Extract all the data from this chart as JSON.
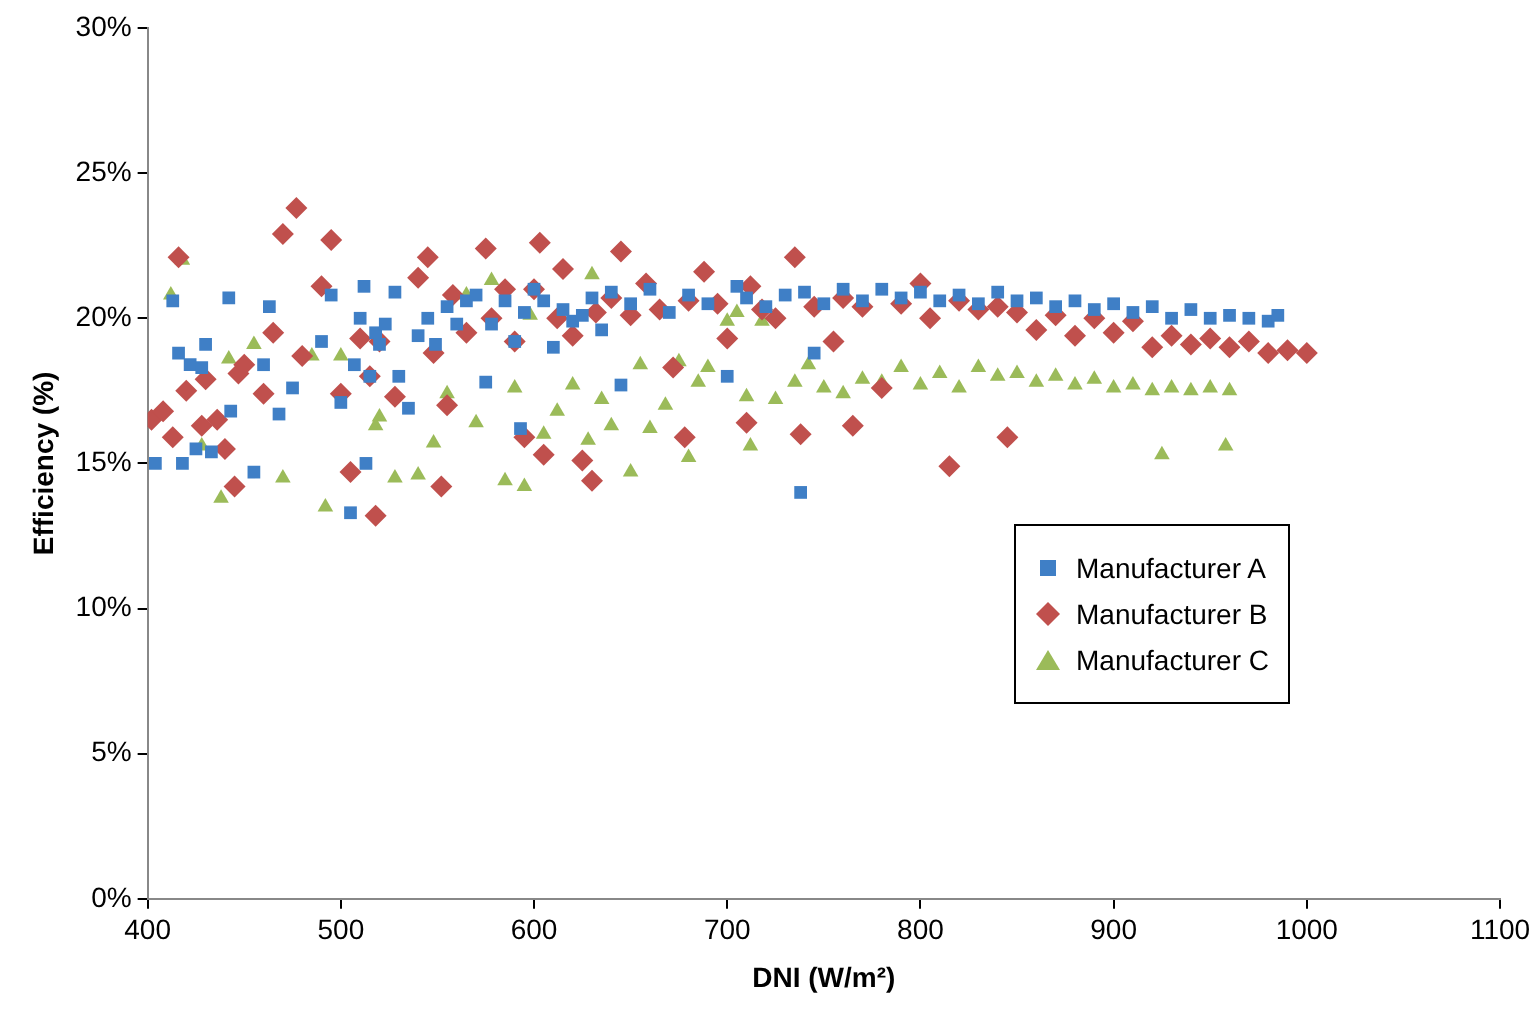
{
  "chart_data": {
    "type": "scatter",
    "xlabel": "DNI (W/m²)",
    "ylabel": "Efficiency (%)",
    "xlim": [
      400,
      1100
    ],
    "xticks": [
      400,
      500,
      600,
      700,
      800,
      900,
      1000,
      1100
    ],
    "ylim": [
      0,
      30
    ],
    "yticks": [
      {
        "value": 0,
        "label": "0%"
      },
      {
        "value": 5,
        "label": "5%"
      },
      {
        "value": 10,
        "label": "10%"
      },
      {
        "value": 15,
        "label": "15%"
      },
      {
        "value": 20,
        "label": "20%"
      },
      {
        "value": 25,
        "label": "25%"
      },
      {
        "value": 30,
        "label": "30%"
      }
    ],
    "grid": false,
    "legend": "right",
    "series": [
      {
        "name": "Manufacturer A",
        "color": "#3f7fc6",
        "marker": "square",
        "x": [
          404,
          413,
          416,
          418,
          422,
          425,
          428,
          430,
          433,
          442,
          443,
          455,
          460,
          463,
          468,
          475,
          490,
          495,
          500,
          505,
          507,
          510,
          512,
          513,
          515,
          518,
          520,
          523,
          528,
          530,
          535,
          540,
          545,
          549,
          555,
          560,
          565,
          570,
          575,
          578,
          585,
          590,
          593,
          595,
          600,
          605,
          610,
          615,
          620,
          625,
          630,
          635,
          640,
          645,
          650,
          660,
          670,
          680,
          690,
          700,
          705,
          710,
          720,
          730,
          738,
          740,
          745,
          750,
          760,
          770,
          780,
          790,
          800,
          810,
          820,
          830,
          840,
          850,
          860,
          870,
          880,
          890,
          900,
          910,
          920,
          930,
          940,
          950,
          960,
          970,
          980,
          985
        ],
        "values": [
          15.0,
          20.6,
          18.8,
          15.0,
          18.4,
          15.5,
          18.3,
          19.1,
          15.4,
          20.7,
          16.8,
          14.7,
          18.4,
          20.4,
          16.7,
          17.6,
          19.2,
          20.8,
          17.1,
          13.3,
          18.4,
          20.0,
          21.1,
          15.0,
          18.0,
          19.5,
          19.1,
          19.8,
          20.9,
          18.0,
          16.9,
          19.4,
          20.0,
          19.1,
          20.4,
          19.8,
          20.6,
          20.8,
          17.8,
          19.8,
          20.6,
          19.2,
          16.2,
          20.2,
          21.0,
          20.6,
          19.0,
          20.3,
          19.9,
          20.1,
          20.7,
          19.6,
          20.9,
          17.7,
          20.5,
          21.0,
          20.2,
          20.8,
          20.5,
          18.0,
          21.1,
          20.7,
          20.4,
          20.8,
          14.0,
          20.9,
          18.8,
          20.5,
          21.0,
          20.6,
          21.0,
          20.7,
          20.9,
          20.6,
          20.8,
          20.5,
          20.9,
          20.6,
          20.7,
          20.4,
          20.6,
          20.3,
          20.5,
          20.2,
          20.4,
          20.0,
          20.3,
          20.0,
          20.1,
          20.0,
          19.9,
          20.1
        ]
      },
      {
        "name": "Manufacturer B",
        "color": "#c0504d",
        "marker": "diamond",
        "x": [
          402,
          408,
          413,
          416,
          420,
          428,
          430,
          436,
          440,
          445,
          447,
          450,
          460,
          465,
          470,
          477,
          480,
          490,
          495,
          500,
          505,
          510,
          515,
          518,
          520,
          528,
          540,
          545,
          548,
          552,
          555,
          558,
          565,
          575,
          578,
          585,
          590,
          595,
          600,
          603,
          605,
          612,
          615,
          620,
          625,
          630,
          632,
          640,
          645,
          650,
          658,
          665,
          672,
          678,
          680,
          688,
          695,
          700,
          710,
          712,
          718,
          725,
          735,
          738,
          745,
          755,
          760,
          765,
          770,
          780,
          790,
          800,
          805,
          815,
          820,
          830,
          840,
          845,
          850,
          860,
          870,
          880,
          890,
          900,
          910,
          920,
          930,
          940,
          950,
          960,
          970,
          980,
          990,
          1000
        ],
        "values": [
          16.5,
          16.8,
          15.9,
          22.1,
          17.5,
          16.3,
          17.9,
          16.5,
          15.5,
          14.2,
          18.1,
          18.4,
          17.4,
          19.5,
          22.9,
          23.8,
          18.7,
          21.1,
          22.7,
          17.4,
          14.7,
          19.3,
          18.0,
          13.2,
          19.2,
          17.3,
          21.4,
          22.1,
          18.8,
          14.2,
          17.0,
          20.8,
          19.5,
          22.4,
          20.0,
          21.0,
          19.2,
          15.9,
          21.0,
          22.6,
          15.3,
          20.0,
          21.7,
          19.4,
          15.1,
          14.4,
          20.2,
          20.7,
          22.3,
          20.1,
          21.2,
          20.3,
          18.3,
          15.9,
          20.6,
          21.6,
          20.5,
          19.3,
          16.4,
          21.1,
          20.3,
          20.0,
          22.1,
          16.0,
          20.4,
          19.2,
          20.7,
          16.3,
          20.4,
          17.6,
          20.5,
          21.2,
          20.0,
          14.9,
          20.6,
          20.3,
          20.4,
          15.9,
          20.2,
          19.6,
          20.1,
          19.4,
          20.0,
          19.5,
          19.9,
          19.0,
          19.4,
          19.1,
          19.3,
          19.0,
          19.2,
          18.8,
          18.9,
          18.8
        ]
      },
      {
        "name": "Manufacturer C",
        "color": "#9bbb59",
        "marker": "triangle",
        "x": [
          412,
          418,
          428,
          438,
          442,
          455,
          470,
          485,
          492,
          500,
          518,
          520,
          528,
          540,
          548,
          555,
          565,
          570,
          578,
          585,
          590,
          595,
          598,
          605,
          612,
          620,
          628,
          630,
          635,
          640,
          650,
          655,
          660,
          668,
          675,
          680,
          685,
          690,
          700,
          705,
          710,
          712,
          718,
          725,
          735,
          742,
          750,
          760,
          770,
          780,
          790,
          800,
          810,
          820,
          830,
          840,
          850,
          860,
          870,
          880,
          890,
          900,
          910,
          920,
          925,
          930,
          940,
          950,
          958,
          960
        ],
        "values": [
          20.8,
          22.0,
          15.6,
          13.8,
          18.6,
          19.1,
          14.5,
          18.7,
          13.5,
          18.7,
          16.3,
          16.6,
          14.5,
          14.6,
          15.7,
          17.4,
          20.8,
          16.4,
          21.3,
          14.4,
          17.6,
          14.2,
          20.1,
          16.0,
          16.8,
          17.7,
          15.8,
          21.5,
          17.2,
          16.3,
          14.7,
          18.4,
          16.2,
          17.0,
          18.5,
          15.2,
          17.8,
          18.3,
          19.9,
          20.2,
          17.3,
          15.6,
          19.9,
          17.2,
          17.8,
          18.4,
          17.6,
          17.4,
          17.9,
          17.8,
          18.3,
          17.7,
          18.1,
          17.6,
          18.3,
          18.0,
          18.1,
          17.8,
          18.0,
          17.7,
          17.9,
          17.6,
          17.7,
          17.5,
          15.3,
          17.6,
          17.5,
          17.6,
          15.6,
          17.5
        ]
      }
    ]
  }
}
